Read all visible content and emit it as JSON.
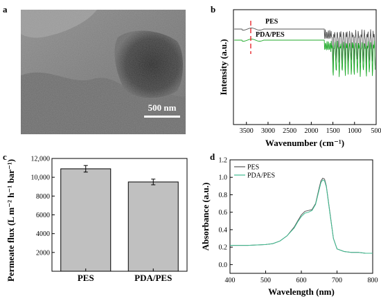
{
  "panels": {
    "a": {
      "label": "a",
      "scale_bar_text": "500 nm"
    },
    "b": {
      "label": "b"
    },
    "c": {
      "label": "c"
    },
    "d": {
      "label": "d"
    }
  },
  "chart_data": [
    {
      "panel": "b",
      "type": "line",
      "xlabel": "Wavenumber (cm⁻¹)",
      "ylabel": "Intensity (a.u.)",
      "xlim": [
        3800,
        500
      ],
      "x_ticks": [
        3500,
        3000,
        2500,
        2000,
        1500,
        1000,
        500
      ],
      "y_ticks_shown": false,
      "annotations": [
        "PES",
        "PDA/PES"
      ],
      "series": [
        {
          "name": "PES",
          "color": "#555555"
        },
        {
          "name": "PDA/PES",
          "color": "#1faa2a"
        }
      ],
      "markers": [
        {
          "x": 3400,
          "style": "dashed",
          "color": "#e8262b"
        }
      ]
    },
    {
      "panel": "c",
      "type": "bar",
      "categories": [
        "PES",
        "PDA/PES"
      ],
      "values": [
        10900,
        9500
      ],
      "errors": [
        350,
        300
      ],
      "bar_color": "#c0c0c0",
      "ylabel": "Permeate flux (L m⁻² h⁻¹ bar⁻¹)",
      "xlabel": "",
      "ylim": [
        0,
        12000
      ],
      "y_ticks": [
        "2000",
        "4000",
        "6000",
        "8000",
        "10,000",
        "12,000"
      ]
    },
    {
      "panel": "d",
      "type": "line",
      "xlabel": "Wavelength (nm)",
      "ylabel": "Absorbance (a.u.)",
      "xlim": [
        400,
        800
      ],
      "ylim": [
        -0.1,
        1.2
      ],
      "x_ticks": [
        400,
        500,
        600,
        700,
        800
      ],
      "y_ticks": [
        "0.0",
        "0.2",
        "0.4",
        "0.6",
        "0.8",
        "1.0",
        "1.2"
      ],
      "legend": "top-left",
      "series": [
        {
          "name": "PES",
          "color": "#555555",
          "x": [
            400,
            450,
            500,
            520,
            540,
            560,
            580,
            590,
            600,
            610,
            620,
            630,
            640,
            650,
            655,
            660,
            665,
            670,
            680,
            690,
            700,
            720,
            740,
            760,
            780,
            800
          ],
          "y": [
            0.22,
            0.22,
            0.23,
            0.24,
            0.27,
            0.33,
            0.43,
            0.5,
            0.57,
            0.61,
            0.62,
            0.63,
            0.7,
            0.88,
            0.96,
            0.99,
            0.98,
            0.9,
            0.6,
            0.3,
            0.18,
            0.15,
            0.14,
            0.14,
            0.13,
            0.13
          ]
        },
        {
          "name": "PDA/PES",
          "color": "#3dbb8f",
          "x": [
            400,
            450,
            500,
            520,
            540,
            560,
            580,
            590,
            600,
            610,
            620,
            630,
            640,
            650,
            655,
            660,
            665,
            670,
            680,
            690,
            700,
            720,
            740,
            760,
            780,
            800
          ],
          "y": [
            0.22,
            0.22,
            0.23,
            0.24,
            0.27,
            0.33,
            0.42,
            0.49,
            0.55,
            0.59,
            0.6,
            0.62,
            0.69,
            0.86,
            0.94,
            0.97,
            0.96,
            0.89,
            0.59,
            0.3,
            0.18,
            0.15,
            0.14,
            0.14,
            0.13,
            0.13
          ]
        }
      ]
    }
  ]
}
